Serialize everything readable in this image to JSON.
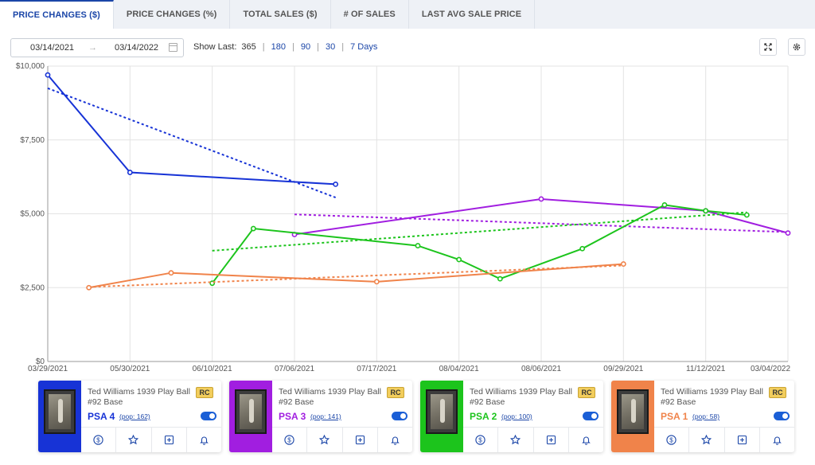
{
  "tabs": [
    {
      "label": "PRICE CHANGES ($)",
      "active": true
    },
    {
      "label": "PRICE CHANGES (%)",
      "active": false
    },
    {
      "label": "TOTAL SALES ($)",
      "active": false
    },
    {
      "label": "# OF SALES",
      "active": false
    },
    {
      "label": "LAST AVG SALE PRICE",
      "active": false
    }
  ],
  "toolbar": {
    "date_from": "03/14/2021",
    "date_arrow": "→",
    "date_to": "03/14/2022",
    "show_last_label": "Show Last:",
    "show_last_current": "365",
    "options": [
      "180",
      "90",
      "30",
      "7 Days"
    ]
  },
  "chart_data": {
    "type": "line",
    "x_ticks": [
      "03/29/2021",
      "05/30/2021",
      "06/10/2021",
      "07/06/2021",
      "07/17/2021",
      "08/04/2021",
      "08/06/2021",
      "09/29/2021",
      "11/12/2021",
      "03/04/2022"
    ],
    "y_ticks": [
      "$0",
      "$2,500",
      "$5,000",
      "$7,500",
      "$10,000"
    ],
    "ylim": [
      0,
      10000
    ],
    "grid": true,
    "series": [
      {
        "name": "PSA 4",
        "color": "#1733d6",
        "points": [
          [
            0,
            9700
          ],
          [
            1,
            6400
          ],
          [
            3.5,
            6000
          ]
        ],
        "trend": [
          [
            0,
            9250
          ],
          [
            3.5,
            5550
          ]
        ]
      },
      {
        "name": "PSA 3",
        "color": "#a11ee0",
        "points": [
          [
            3,
            4300
          ],
          [
            6,
            5500
          ],
          [
            8,
            5100
          ],
          [
            9,
            4350
          ]
        ],
        "trend": [
          [
            3,
            4980
          ],
          [
            9,
            4380
          ]
        ]
      },
      {
        "name": "PSA 2",
        "color": "#1cc41c",
        "points": [
          [
            2,
            2650
          ],
          [
            2.5,
            4500
          ],
          [
            4.5,
            3920
          ],
          [
            5,
            3450
          ],
          [
            5.5,
            2800
          ],
          [
            6.5,
            3820
          ],
          [
            7.5,
            5300
          ],
          [
            8,
            5100
          ],
          [
            8.5,
            4960
          ]
        ],
        "trend": [
          [
            2,
            3750
          ],
          [
            8.5,
            5050
          ]
        ]
      },
      {
        "name": "PSA 1",
        "color": "#f0834a",
        "points": [
          [
            0.5,
            2500
          ],
          [
            1.5,
            3000
          ],
          [
            4,
            2700
          ],
          [
            7,
            3300
          ]
        ],
        "trend": [
          [
            0.5,
            2520
          ],
          [
            7,
            3250
          ]
        ]
      }
    ]
  },
  "cards": [
    {
      "title": "Ted Williams 1939 Play Ball #92 Base",
      "badge": "RC",
      "grade": "PSA 4",
      "pop": "(pop: 162)",
      "color": "#1733d6",
      "pop_offset": 102
    },
    {
      "title": "Ted Williams 1939 Play Ball #92 Base",
      "badge": "RC",
      "grade": "PSA 3",
      "pop": "(pop: 141)",
      "color": "#a11ee0",
      "pop_offset": 102
    },
    {
      "title": "Ted Williams 1939 Play Ball #92 Base",
      "badge": "RC",
      "grade": "PSA 2",
      "pop": "(pop: 100)",
      "color": "#1cc41c",
      "pop_offset": 102
    },
    {
      "title": "Ted Williams 1939 Play Ball #92 Base",
      "badge": "RC",
      "grade": "PSA 1",
      "pop": "(pop: 58)",
      "color": "#f0834a",
      "pop_offset": 102
    }
  ],
  "card_actions": [
    "dollar-icon",
    "star-icon",
    "add-box-icon",
    "bell-icon"
  ]
}
